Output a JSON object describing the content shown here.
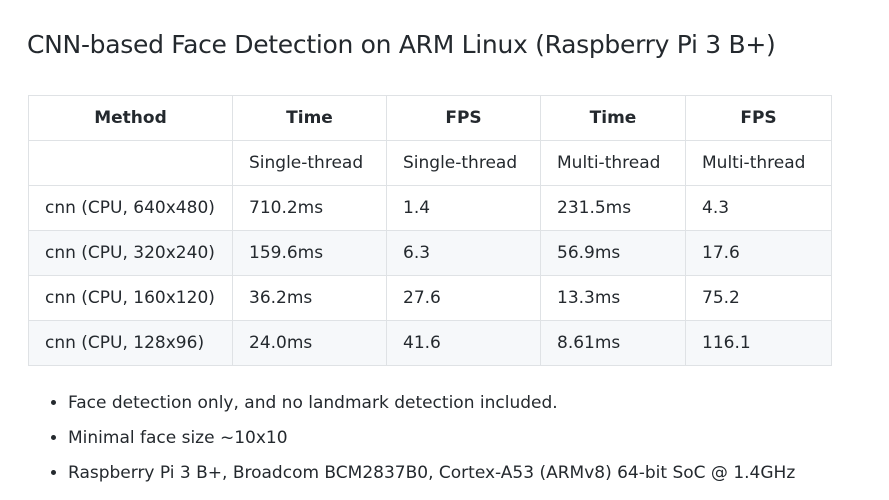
{
  "title": "CNN-based Face Detection on ARM Linux (Raspberry Pi 3 B+)",
  "table": {
    "headers": [
      "Method",
      "Time",
      "FPS",
      "Time",
      "FPS"
    ],
    "rows": [
      [
        "",
        "Single-thread",
        "Single-thread",
        "Multi-thread",
        "Multi-thread"
      ],
      [
        "cnn (CPU, 640x480)",
        "710.2ms",
        "1.4",
        "231.5ms",
        "4.3"
      ],
      [
        "cnn (CPU, 320x240)",
        "159.6ms",
        "6.3",
        "56.9ms",
        "17.6"
      ],
      [
        "cnn (CPU, 160x120)",
        "36.2ms",
        "27.6",
        "13.3ms",
        "75.2"
      ],
      [
        "cnn (CPU, 128x96)",
        "24.0ms",
        "41.6",
        "8.61ms",
        "116.1"
      ]
    ]
  },
  "notes": [
    "Face detection only, and no landmark detection included.",
    "Minimal face size ~10x10",
    "Raspberry Pi 3 B+, Broadcom BCM2837B0, Cortex-A53 (ARMv8) 64-bit SoC @ 1.4GHz"
  ]
}
